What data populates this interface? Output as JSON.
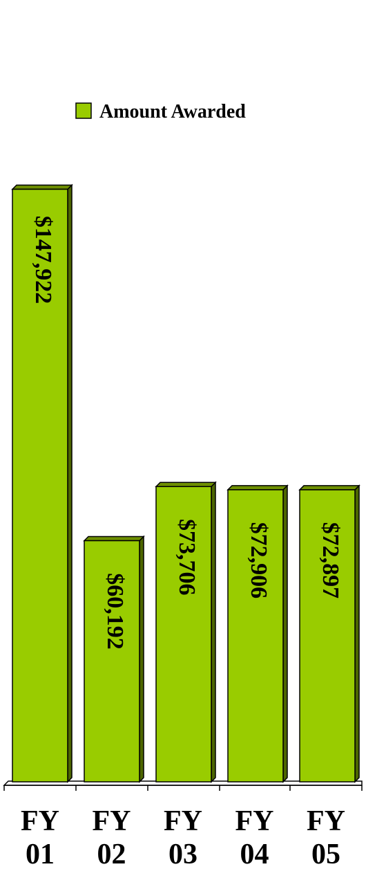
{
  "chart_data": {
    "type": "bar",
    "categories": [
      [
        "FY",
        "01"
      ],
      [
        "FY",
        "02"
      ],
      [
        "FY",
        "03"
      ],
      [
        "FY",
        "04"
      ],
      [
        "FY",
        "05"
      ]
    ],
    "series": [
      {
        "name": "Amount Awarded",
        "values": [
          147922,
          60192,
          73706,
          72906,
          72897
        ],
        "labels": [
          "$147,922",
          "$60,192",
          "$73,706",
          "$72,906",
          "$72,897"
        ]
      }
    ],
    "ylim": [
      0,
      152000
    ],
    "grid": false,
    "legend": "top",
    "colors": {
      "bar_front": "#99CC00",
      "bar_side": "#4D6600",
      "bar_top": "#6E8F00",
      "outline": "#000000"
    }
  }
}
